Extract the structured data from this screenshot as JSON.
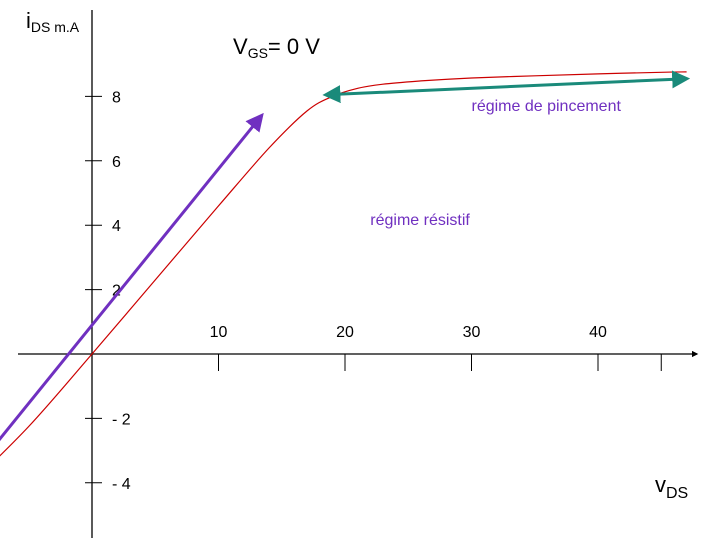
{
  "chart_data": {
    "type": "line",
    "title": "",
    "ylabel_main": "i",
    "ylabel_sub": "DS m.A",
    "xlabel_main": "v",
    "xlabel_sub": "DS",
    "curve_label_prefix": "V",
    "curve_label_sub": "GS",
    "curve_label_suffix": "= 0 V",
    "xlim": [
      -14,
      48
    ],
    "ylim": [
      -5.8,
      9.3
    ],
    "x_ticks": [
      {
        "value": 10,
        "label": "10"
      },
      {
        "value": 20,
        "label": "20"
      },
      {
        "value": 30,
        "label": "30"
      },
      {
        "value": 40,
        "label": "40"
      }
    ],
    "x_extra_tick": 45,
    "y_ticks": [
      {
        "value": 8,
        "label": "8"
      },
      {
        "value": 6,
        "label": "6"
      },
      {
        "value": 4,
        "label": "4"
      },
      {
        "value": 2,
        "label": "2"
      },
      {
        "value": -2,
        "label": "- 2"
      },
      {
        "value": -4,
        "label": "- 4"
      }
    ],
    "series": [
      {
        "color": "#cc0000",
        "x": [
          -13.8,
          -10,
          -5,
          0,
          5,
          10,
          14,
          17,
          19,
          21,
          23,
          26,
          30,
          35,
          40,
          45,
          47
        ],
        "y": [
          -5.65,
          -4.2,
          -2.25,
          0,
          2.3,
          4.6,
          6.4,
          7.55,
          8.0,
          8.25,
          8.38,
          8.48,
          8.57,
          8.64,
          8.7,
          8.75,
          8.76
        ]
      }
    ],
    "annotations": [
      {
        "name": "resistive-regime-arrow",
        "text": "régime résistif",
        "color": "#7030c0",
        "text_color": "#7030c0",
        "from": [
          -13.8,
          -5.8
        ],
        "to": [
          13.4,
          7.4
        ],
        "label_at": [
          22,
          4
        ]
      },
      {
        "name": "pinch-off-regime-arrow",
        "text": "régime de pincement",
        "color": "#1a8a7a",
        "text_color": "#7030c0",
        "from": [
          18.5,
          8.05
        ],
        "to": [
          47,
          8.55
        ],
        "label_at": [
          30,
          7.55
        ]
      }
    ],
    "legend": "none",
    "grid": false
  }
}
